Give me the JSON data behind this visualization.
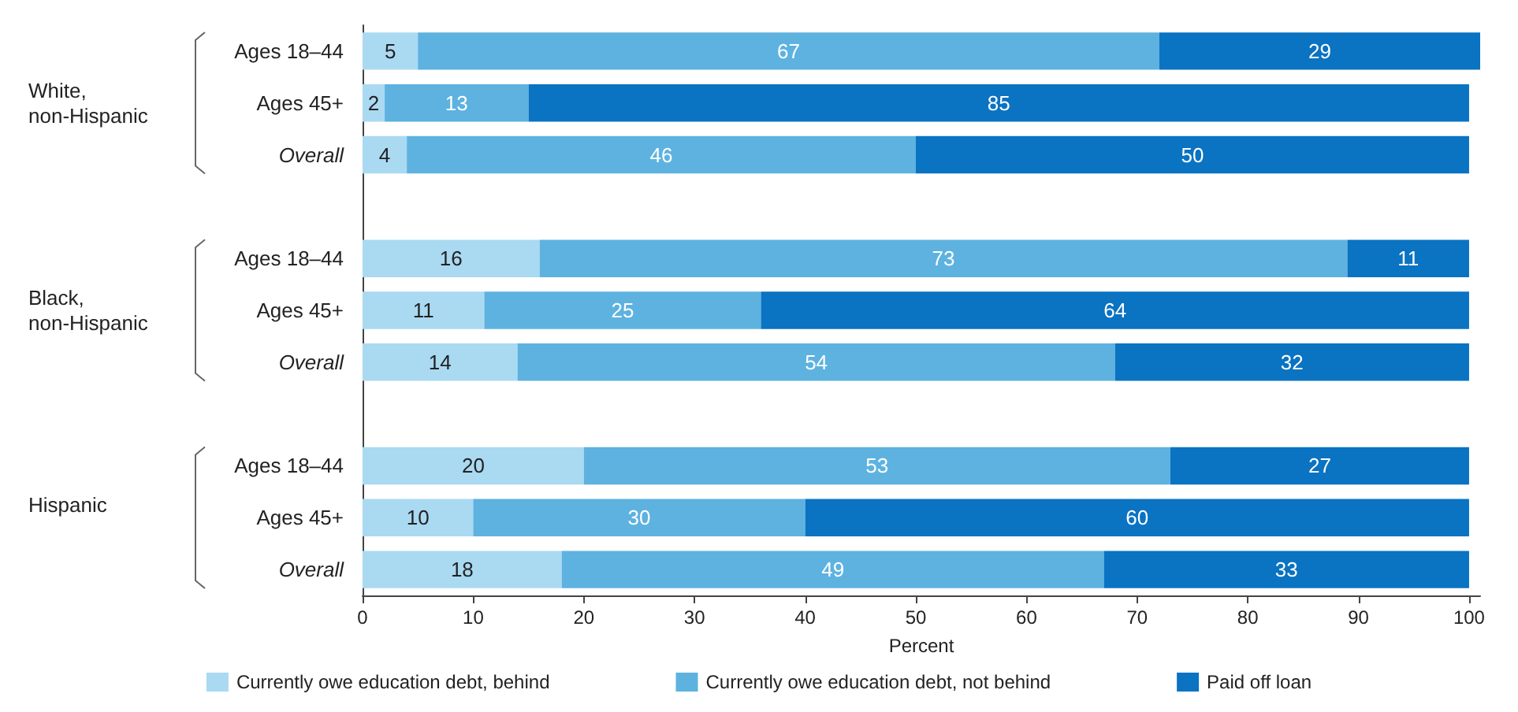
{
  "chart_data": {
    "type": "bar",
    "orientation": "horizontal",
    "stacked": true,
    "xlabel": "Percent",
    "categories": [
      "Ages 18–44",
      "Ages 45+",
      "Overall",
      null,
      "Ages 18–44",
      "Ages 45+",
      "Overall",
      null,
      "Ages 18–44",
      "Ages 45+",
      "Overall"
    ],
    "series": [
      {
        "name": "Currently owe education debt, behind",
        "color": "#aad9f2",
        "values": [
          5,
          2,
          4,
          null,
          16,
          11,
          14,
          null,
          20,
          10,
          18
        ]
      },
      {
        "name": "Currently owe education debt, not behind",
        "color": "#5db2e0",
        "values": [
          67,
          13,
          46,
          null,
          73,
          25,
          54,
          null,
          53,
          30,
          49
        ]
      },
      {
        "name": "Paid off loan",
        "color": "#0a73c2",
        "values": [
          29,
          85,
          50,
          null,
          11,
          64,
          32,
          null,
          27,
          60,
          33
        ]
      }
    ],
    "annotations": [
      "White,\nnon-Hispanic",
      "Black,\nnon-Hispanic",
      "Hispanic"
    ],
    "xlim": [
      0,
      101
    ],
    "xticks": [
      0,
      10,
      20,
      30,
      40,
      50,
      60,
      70,
      80,
      90,
      100
    ],
    "data_labels": true,
    "legend": "bottom",
    "grid": false
  }
}
